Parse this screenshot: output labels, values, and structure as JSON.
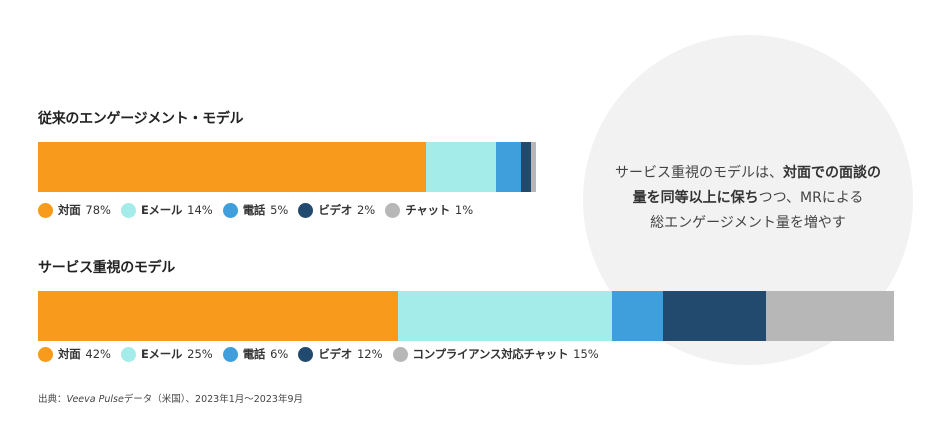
{
  "colors": {
    "face_to_face": "#f89b1c",
    "email": "#a3ece9",
    "phone": "#3e9fdc",
    "video": "#214a6e",
    "chat": "#b7b7b7",
    "background_circle": "#f2f2f2"
  },
  "callout": {
    "part1": "サービス重視のモデルは、",
    "bold1": "対面での面談の",
    "bold2": "量を同等以上に保ち",
    "part2": "つつ、MRによる",
    "line3": "総エンゲージメント量を増やす"
  },
  "chart_data": [
    {
      "type": "bar",
      "orientation": "horizontal-stacked-100",
      "title": "従来のエンゲージメント・モデル",
      "series": [
        {
          "name": "対面",
          "value": 78,
          "label": "78%",
          "color": "#f89b1c"
        },
        {
          "name": "Eメール",
          "value": 14,
          "label": "14%",
          "color": "#a3ece9"
        },
        {
          "name": "電話",
          "value": 5,
          "label": "5%",
          "color": "#3e9fdc"
        },
        {
          "name": "ビデオ",
          "value": 2,
          "label": "2%",
          "color": "#214a6e"
        },
        {
          "name": "チャット",
          "value": 1,
          "label": "1%",
          "color": "#b7b7b7"
        }
      ],
      "scale_total": 100
    },
    {
      "type": "bar",
      "orientation": "horizontal-stacked-100",
      "title": "サービス重視のモデル",
      "series": [
        {
          "name": "対面",
          "value": 42,
          "label": "42%",
          "color": "#f89b1c"
        },
        {
          "name": "Eメール",
          "value": 25,
          "label": "25%",
          "color": "#a3ece9"
        },
        {
          "name": "電話",
          "value": 6,
          "label": "6%",
          "color": "#3e9fdc"
        },
        {
          "name": "ビデオ",
          "value": 12,
          "label": "12%",
          "color": "#214a6e"
        },
        {
          "name": "コンプライアンス対応チャット",
          "value": 15,
          "label": "15%",
          "color": "#b7b7b7"
        }
      ],
      "scale_total": 100
    }
  ],
  "source": {
    "prefix": "出典：",
    "italic": "Veeva Pulse",
    "suffix": "データ（米国）、2023年1月～2023年9月"
  }
}
